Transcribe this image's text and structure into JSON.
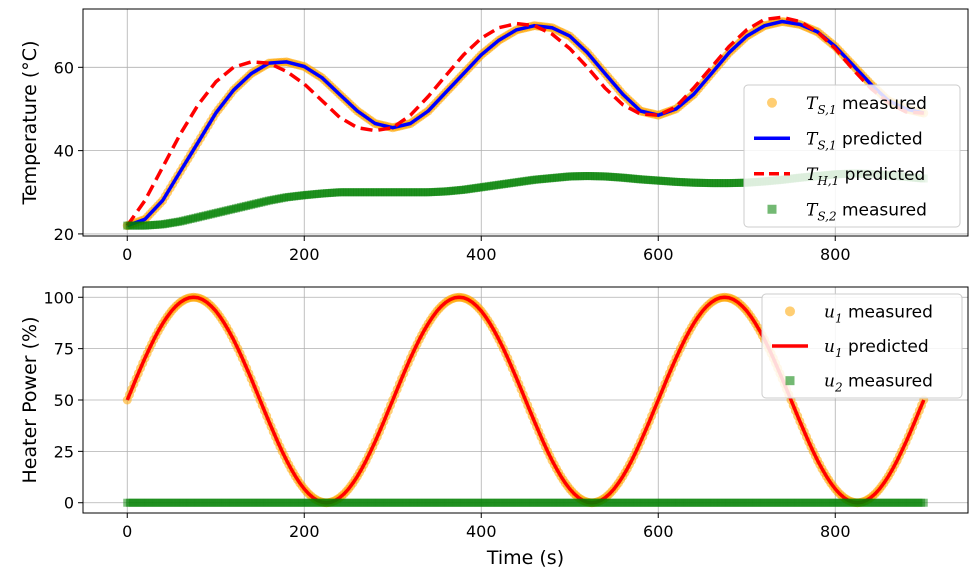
{
  "chart_data": [
    {
      "type": "line",
      "title": "",
      "xlabel": "",
      "ylabel": "Temperature (°C)",
      "xlim": [
        -50,
        950
      ],
      "ylim": [
        19.5,
        74
      ],
      "xticks": [
        0,
        200,
        400,
        600,
        800
      ],
      "yticks": [
        20,
        40,
        60
      ],
      "grid": true,
      "legend_position": "right",
      "series": [
        {
          "name": "T_S,1 measured",
          "legend_main": "T",
          "legend_sub": "S,1",
          "legend_suffix": " measured",
          "style": "scatter",
          "color": "#FFA500",
          "x": [
            0,
            20,
            40,
            60,
            80,
            100,
            120,
            140,
            160,
            180,
            200,
            220,
            240,
            260,
            280,
            300,
            320,
            340,
            360,
            380,
            400,
            420,
            440,
            460,
            480,
            500,
            520,
            540,
            560,
            580,
            600,
            620,
            640,
            660,
            680,
            700,
            720,
            740,
            760,
            780,
            800,
            820,
            840,
            860,
            880,
            900
          ],
          "y": [
            22,
            23.5,
            28,
            35,
            42,
            49,
            54.5,
            58.5,
            61,
            61.3,
            60.2,
            57.5,
            53.5,
            49.5,
            46.5,
            45.5,
            46.5,
            49.5,
            54,
            58.5,
            63,
            66.5,
            69,
            70,
            69.5,
            67.5,
            63.5,
            58.5,
            53.5,
            49.5,
            48.5,
            50,
            53.5,
            58.5,
            63.5,
            67.5,
            70,
            71,
            70.3,
            68.5,
            65,
            60.5,
            56,
            52,
            50,
            49
          ]
        },
        {
          "name": "T_S,1 predicted",
          "legend_main": "T",
          "legend_sub": "S,1",
          "legend_suffix": " predicted",
          "style": "line",
          "color": "#0000FF",
          "x": [
            0,
            20,
            40,
            60,
            80,
            100,
            120,
            140,
            160,
            180,
            200,
            220,
            240,
            260,
            280,
            300,
            320,
            340,
            360,
            380,
            400,
            420,
            440,
            460,
            480,
            500,
            520,
            540,
            560,
            580,
            600,
            620,
            640,
            660,
            680,
            700,
            720,
            740,
            760,
            780,
            800,
            820,
            840,
            860,
            880,
            900
          ],
          "y": [
            22,
            23.5,
            28,
            35,
            42,
            49,
            54.5,
            58.5,
            61,
            61.3,
            60.2,
            57.5,
            53.5,
            49.5,
            46.5,
            45.5,
            46.5,
            49.5,
            54,
            58.5,
            63,
            66.5,
            69,
            70,
            69.5,
            67.5,
            63.5,
            58.5,
            53.5,
            49.5,
            48.5,
            50,
            53.5,
            58.5,
            63.5,
            67.5,
            70,
            71,
            70.3,
            68.5,
            65,
            60.5,
            56,
            52,
            50,
            49
          ]
        },
        {
          "name": "T_H,1 predicted",
          "legend_main": "T",
          "legend_sub": "H,1",
          "legend_suffix": " predicted",
          "style": "dashed",
          "color": "#FF0000",
          "x": [
            0,
            20,
            40,
            60,
            80,
            100,
            120,
            140,
            160,
            180,
            200,
            220,
            240,
            260,
            280,
            300,
            320,
            340,
            360,
            380,
            400,
            420,
            440,
            460,
            480,
            500,
            520,
            540,
            560,
            580,
            600,
            620,
            640,
            660,
            680,
            700,
            720,
            740,
            760,
            780,
            800,
            820,
            840,
            860,
            880,
            900
          ],
          "y": [
            22,
            28,
            36,
            44,
            51,
            56.5,
            60,
            61.3,
            61,
            59,
            56,
            52,
            48,
            45.5,
            44.8,
            45.5,
            48.5,
            53,
            58,
            63,
            67,
            69.5,
            70.5,
            70,
            68,
            64.5,
            60,
            55,
            51,
            48.8,
            48.5,
            50.5,
            55,
            60,
            65,
            69,
            71.5,
            72,
            71,
            68.5,
            64.5,
            59.5,
            55,
            51.5,
            49.3,
            49
          ]
        },
        {
          "name": "T_S,2 measured",
          "legend_main": "T",
          "legend_sub": "S,2",
          "legend_suffix": " measured",
          "style": "square",
          "color": "#008000",
          "x": [
            0,
            20,
            40,
            60,
            80,
            100,
            120,
            140,
            160,
            180,
            200,
            220,
            240,
            260,
            280,
            300,
            320,
            340,
            360,
            380,
            400,
            420,
            440,
            460,
            480,
            500,
            520,
            540,
            560,
            580,
            600,
            620,
            640,
            660,
            680,
            700,
            720,
            740,
            760,
            780,
            800,
            820,
            840,
            860,
            880,
            900
          ],
          "y": [
            22,
            22,
            22.3,
            23,
            24,
            25,
            26,
            27,
            28,
            28.8,
            29.3,
            29.7,
            30,
            30,
            30,
            30,
            30,
            30,
            30.2,
            30.6,
            31.2,
            31.8,
            32.4,
            33,
            33.4,
            33.8,
            33.9,
            33.8,
            33.5,
            33.1,
            32.8,
            32.5,
            32.3,
            32.2,
            32.2,
            32.3,
            32.6,
            33,
            33.5,
            33.9,
            34.3,
            34.5,
            34.4,
            34.1,
            33.7,
            33.3
          ]
        }
      ]
    },
    {
      "type": "line",
      "title": "",
      "xlabel": "Time (s)",
      "ylabel": "Heater Power (%)",
      "xlim": [
        -50,
        950
      ],
      "ylim": [
        -5,
        105
      ],
      "xticks": [
        0,
        200,
        400,
        600,
        800
      ],
      "yticks": [
        0,
        25,
        50,
        75,
        100
      ],
      "grid": true,
      "legend_position": "top-right",
      "series": [
        {
          "name": "u_1 measured",
          "legend_main": "u",
          "legend_sub": "1",
          "legend_suffix": " measured",
          "style": "scatter",
          "color": "#FFA500",
          "formula": "50 + 50*sin(2*pi*t/300)",
          "x_range": [
            0,
            900
          ]
        },
        {
          "name": "u_1 predicted",
          "legend_main": "u",
          "legend_sub": "1",
          "legend_suffix": " predicted",
          "style": "line",
          "color": "#FF0000",
          "formula": "50 + 50*sin(2*pi*t/300)",
          "x_range": [
            0,
            900
          ]
        },
        {
          "name": "u_2 measured",
          "legend_main": "u",
          "legend_sub": "2",
          "legend_suffix": " measured",
          "style": "square",
          "color": "#008000",
          "x": [
            0,
            900
          ],
          "y": [
            0,
            0
          ]
        }
      ]
    }
  ]
}
